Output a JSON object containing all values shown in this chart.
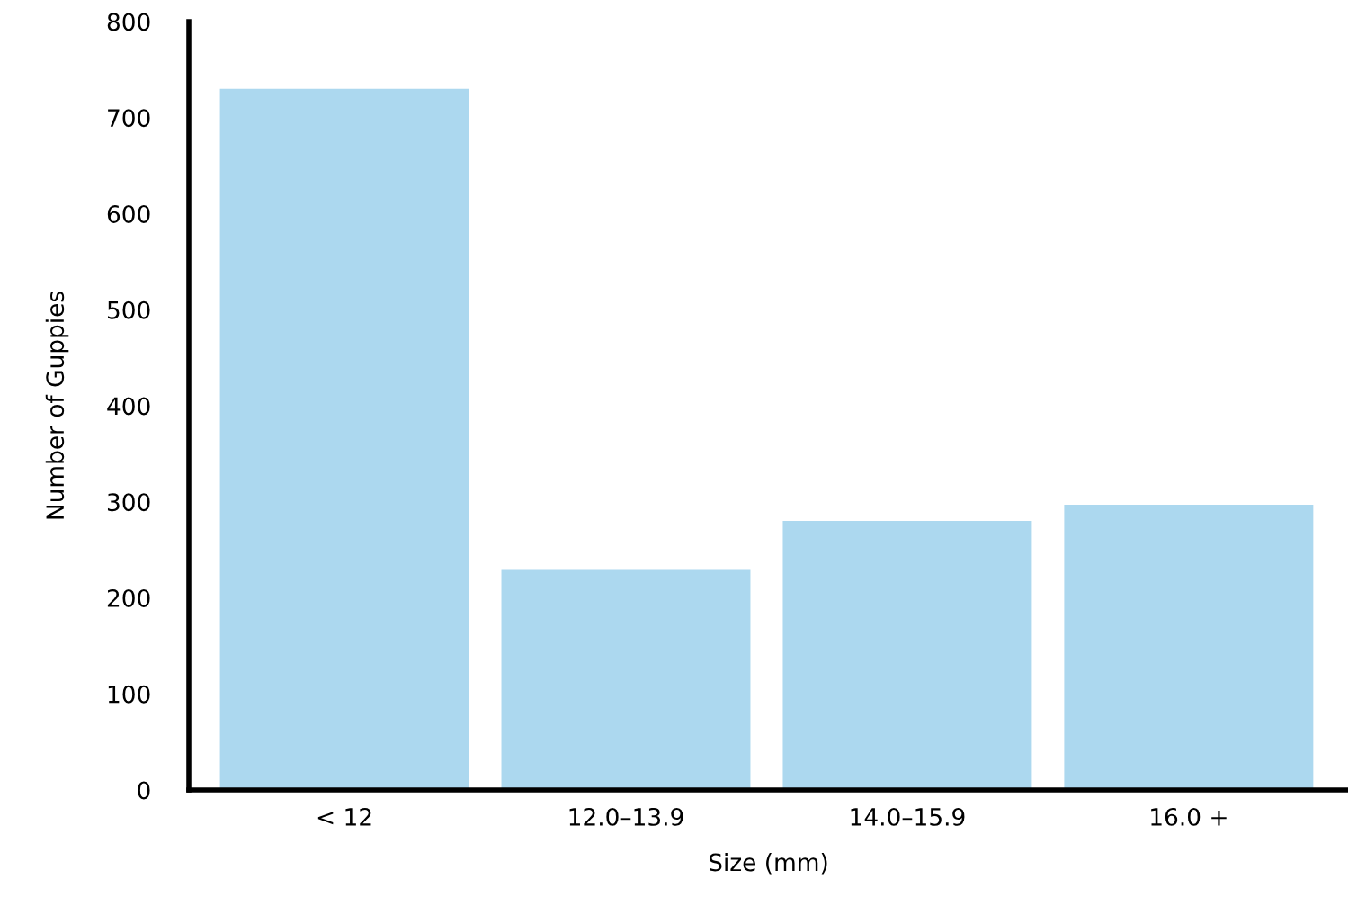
{
  "chart_data": {
    "type": "bar",
    "xlabel": "Size (mm)",
    "ylabel": "Number of Guppies",
    "categories": [
      "< 12",
      "12.0–13.9",
      "14.0–15.9",
      "16.0 +"
    ],
    "values": [
      730,
      230,
      280,
      297
    ],
    "color": "#acd8ef",
    "ylim": [
      0,
      800
    ],
    "yticks": [
      0,
      100,
      200,
      300,
      400,
      500,
      600,
      700,
      800
    ],
    "grid": false
  }
}
